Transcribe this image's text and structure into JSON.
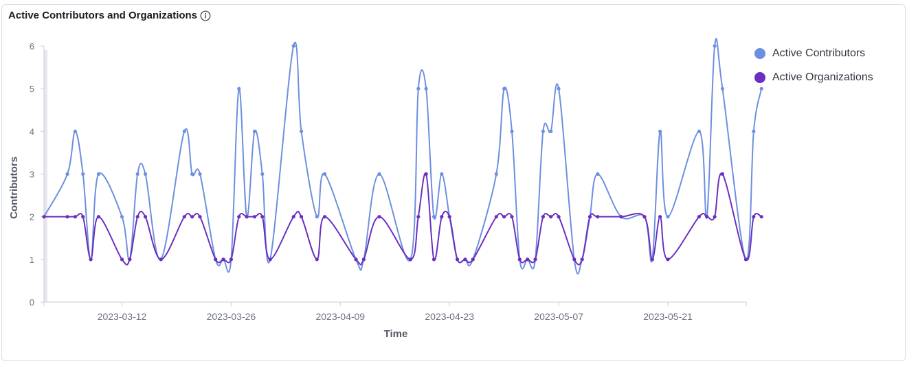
{
  "panel": {
    "title": "Active Contributors and Organizations",
    "info_icon": "info-icon"
  },
  "colors": {
    "contributors": "#6d8fe0",
    "organizations": "#6a2fbf",
    "axis": "#c9ced8",
    "tick_text": "#69707d"
  },
  "chart_data": {
    "type": "line",
    "xlabel": "Time",
    "ylabel": "Contributors",
    "ylim": [
      0,
      6
    ],
    "yticks": [
      0,
      1,
      2,
      3,
      4,
      5,
      6
    ],
    "xlim": [
      "2023-03-02",
      "2023-06-01"
    ],
    "xticks": [
      "2023-03-12",
      "2023-03-26",
      "2023-04-09",
      "2023-04-23",
      "2023-05-07",
      "2023-05-21"
    ],
    "grid": false,
    "legend_position": "top-right",
    "series": [
      {
        "name": "Active Contributors",
        "points": [
          [
            "2023-03-02",
            2
          ],
          [
            "2023-03-05",
            3
          ],
          [
            "2023-03-06",
            4
          ],
          [
            "2023-03-07",
            3
          ],
          [
            "2023-03-08",
            1
          ],
          [
            "2023-03-09",
            3
          ],
          [
            "2023-03-12",
            2
          ],
          [
            "2023-03-13",
            1
          ],
          [
            "2023-03-14",
            3
          ],
          [
            "2023-03-15",
            3
          ],
          [
            "2023-03-17",
            1
          ],
          [
            "2023-03-20",
            4
          ],
          [
            "2023-03-21",
            3
          ],
          [
            "2023-03-22",
            3
          ],
          [
            "2023-03-24",
            1
          ],
          [
            "2023-03-25",
            1
          ],
          [
            "2023-03-26",
            1
          ],
          [
            "2023-03-27",
            5
          ],
          [
            "2023-03-28",
            2
          ],
          [
            "2023-03-29",
            4
          ],
          [
            "2023-03-30",
            3
          ],
          [
            "2023-03-31",
            1
          ],
          [
            "2023-04-03",
            6
          ],
          [
            "2023-04-04",
            4
          ],
          [
            "2023-04-06",
            2
          ],
          [
            "2023-04-07",
            3
          ],
          [
            "2023-04-11",
            1
          ],
          [
            "2023-04-12",
            1
          ],
          [
            "2023-04-14",
            3
          ],
          [
            "2023-04-18",
            1
          ],
          [
            "2023-04-19",
            5
          ],
          [
            "2023-04-20",
            5
          ],
          [
            "2023-04-21",
            2
          ],
          [
            "2023-04-22",
            3
          ],
          [
            "2023-04-23",
            2
          ],
          [
            "2023-04-24",
            1
          ],
          [
            "2023-04-25",
            1
          ],
          [
            "2023-04-26",
            1
          ],
          [
            "2023-04-29",
            3
          ],
          [
            "2023-04-30",
            5
          ],
          [
            "2023-05-01",
            4
          ],
          [
            "2023-05-02",
            1
          ],
          [
            "2023-05-03",
            1
          ],
          [
            "2023-05-04",
            1
          ],
          [
            "2023-05-05",
            4
          ],
          [
            "2023-05-06",
            4
          ],
          [
            "2023-05-07",
            5
          ],
          [
            "2023-05-09",
            1
          ],
          [
            "2023-05-10",
            1
          ],
          [
            "2023-05-11",
            2
          ],
          [
            "2023-05-12",
            3
          ],
          [
            "2023-05-15",
            2
          ],
          [
            "2023-05-18",
            2
          ],
          [
            "2023-05-19",
            1
          ],
          [
            "2023-05-20",
            4
          ],
          [
            "2023-05-21",
            2
          ],
          [
            "2023-05-25",
            4
          ],
          [
            "2023-05-26",
            2
          ],
          [
            "2023-05-27",
            6
          ],
          [
            "2023-05-28",
            5
          ],
          [
            "2023-05-31",
            1
          ],
          [
            "2023-06-01",
            4
          ],
          [
            "2023-06-02",
            5
          ]
        ]
      },
      {
        "name": "Active Organizations",
        "points": [
          [
            "2023-03-02",
            2
          ],
          [
            "2023-03-05",
            2
          ],
          [
            "2023-03-06",
            2
          ],
          [
            "2023-03-07",
            2
          ],
          [
            "2023-03-08",
            1
          ],
          [
            "2023-03-09",
            2
          ],
          [
            "2023-03-12",
            1
          ],
          [
            "2023-03-13",
            1
          ],
          [
            "2023-03-14",
            2
          ],
          [
            "2023-03-15",
            2
          ],
          [
            "2023-03-17",
            1
          ],
          [
            "2023-03-20",
            2
          ],
          [
            "2023-03-21",
            2
          ],
          [
            "2023-03-22",
            2
          ],
          [
            "2023-03-24",
            1
          ],
          [
            "2023-03-25",
            1
          ],
          [
            "2023-03-26",
            1
          ],
          [
            "2023-03-27",
            2
          ],
          [
            "2023-03-28",
            2
          ],
          [
            "2023-03-29",
            2
          ],
          [
            "2023-03-30",
            2
          ],
          [
            "2023-03-31",
            1
          ],
          [
            "2023-04-03",
            2
          ],
          [
            "2023-04-04",
            2
          ],
          [
            "2023-04-06",
            1
          ],
          [
            "2023-04-07",
            2
          ],
          [
            "2023-04-11",
            1
          ],
          [
            "2023-04-12",
            1
          ],
          [
            "2023-04-14",
            2
          ],
          [
            "2023-04-18",
            1
          ],
          [
            "2023-04-19",
            2
          ],
          [
            "2023-04-20",
            3
          ],
          [
            "2023-04-21",
            1
          ],
          [
            "2023-04-22",
            2
          ],
          [
            "2023-04-23",
            2
          ],
          [
            "2023-04-24",
            1
          ],
          [
            "2023-04-25",
            1
          ],
          [
            "2023-04-26",
            1
          ],
          [
            "2023-04-29",
            2
          ],
          [
            "2023-04-30",
            2
          ],
          [
            "2023-05-01",
            2
          ],
          [
            "2023-05-02",
            1
          ],
          [
            "2023-05-03",
            1
          ],
          [
            "2023-05-04",
            1
          ],
          [
            "2023-05-05",
            2
          ],
          [
            "2023-05-06",
            2
          ],
          [
            "2023-05-07",
            2
          ],
          [
            "2023-05-09",
            1
          ],
          [
            "2023-05-10",
            1
          ],
          [
            "2023-05-11",
            2
          ],
          [
            "2023-05-12",
            2
          ],
          [
            "2023-05-15",
            2
          ],
          [
            "2023-05-18",
            2
          ],
          [
            "2023-05-19",
            1
          ],
          [
            "2023-05-20",
            2
          ],
          [
            "2023-05-21",
            1
          ],
          [
            "2023-05-25",
            2
          ],
          [
            "2023-05-26",
            2
          ],
          [
            "2023-05-27",
            2
          ],
          [
            "2023-05-28",
            3
          ],
          [
            "2023-05-31",
            1
          ],
          [
            "2023-06-01",
            2
          ],
          [
            "2023-06-02",
            2
          ]
        ]
      }
    ]
  }
}
